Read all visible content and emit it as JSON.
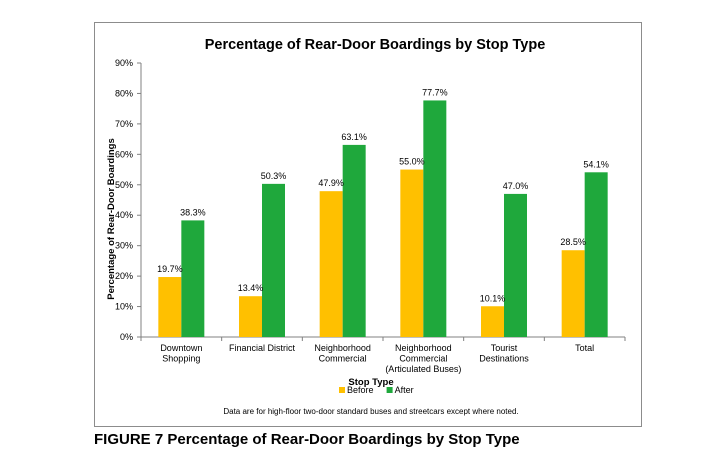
{
  "chart_data": {
    "type": "bar",
    "title": "Percentage of Rear-Door Boardings by Stop Type",
    "xlabel": "Stop Type",
    "ylabel": "Percentage of Rear-Door Boardings",
    "ylim": [
      0,
      90
    ],
    "yticks": [
      0,
      10,
      20,
      30,
      40,
      50,
      60,
      70,
      80,
      90
    ],
    "ytick_labels": [
      "0%",
      "10%",
      "20%",
      "30%",
      "40%",
      "50%",
      "60%",
      "70%",
      "80%",
      "90%"
    ],
    "categories": [
      [
        "Downtown",
        "Shopping"
      ],
      [
        "Financial District"
      ],
      [
        "Neighborhood",
        "Commercial"
      ],
      [
        "Neighborhood",
        "Commercial",
        "(Articulated Buses)"
      ],
      [
        "Tourist",
        "Destinations"
      ],
      [
        "Total"
      ]
    ],
    "series": [
      {
        "name": "Before",
        "color": "#ffc000",
        "values": [
          19.7,
          13.4,
          47.9,
          55.0,
          10.1,
          28.5
        ],
        "labels": [
          "19.7%",
          "13.4%",
          "47.9%",
          "55.0%",
          "10.1%",
          "28.5%"
        ]
      },
      {
        "name": "After",
        "color": "#1fa83c",
        "values": [
          38.3,
          50.3,
          63.1,
          77.7,
          47.0,
          54.1
        ],
        "labels": [
          "38.3%",
          "50.3%",
          "63.1%",
          "77.7%",
          "47.0%",
          "54.1%"
        ]
      }
    ],
    "grid": false,
    "legend": "bottom-center",
    "note": "Data are for high-floor two-door standard buses and streetcars except where noted."
  },
  "caption": "FIGURE 7 Percentage of Rear-Door Boardings by Stop Type"
}
